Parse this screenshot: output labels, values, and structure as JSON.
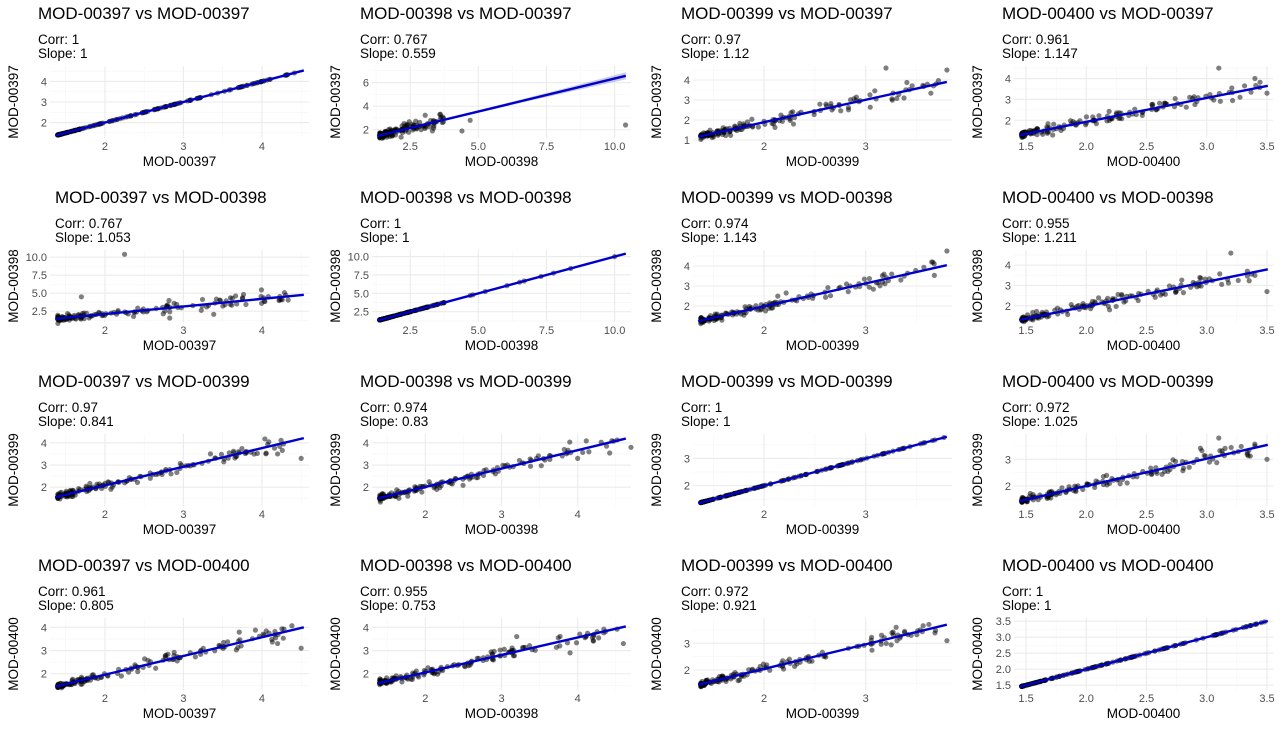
{
  "chart_data": [
    {
      "type": "scatter",
      "title": "MOD-00397 vs MOD-00397",
      "corr": "Corr: 1",
      "slope": "Slope: 1",
      "xlabel": "MOD-00397",
      "ylabel": "MOD-00397",
      "xlim": [
        1.3,
        4.6
      ],
      "ylim": [
        1.25,
        4.75
      ],
      "xticks": [
        "2",
        "3",
        "4"
      ],
      "yticks": [
        "2",
        "3",
        "4"
      ],
      "slope_value": 1,
      "intercept": 0,
      "pattern": "identity",
      "ci": false
    },
    {
      "type": "scatter",
      "title": "MOD-00398 vs MOD-00397",
      "corr": "Corr: 0.767",
      "slope": "Slope: 0.559",
      "xlabel": "MOD-00398",
      "ylabel": "MOD-00397",
      "xlim": [
        1.1,
        10.6
      ],
      "ylim": [
        1.3,
        7.4
      ],
      "xticks": [
        "2.5",
        "5.0",
        "7.5",
        "10.0"
      ],
      "yticks": [
        "2",
        "4",
        "6"
      ],
      "slope_value": 0.559,
      "intercept": 0.75,
      "pattern": "noisy",
      "ci": true,
      "outliers": [
        [
          10.4,
          2.4
        ],
        [
          4.7,
          2.8
        ],
        [
          4.4,
          1.9
        ]
      ]
    },
    {
      "type": "scatter",
      "title": "MOD-00399 vs MOD-00397",
      "corr": "Corr: 0.97",
      "slope": "Slope: 1.12",
      "xlabel": "MOD-00399",
      "ylabel": "MOD-00397",
      "xlim": [
        1.3,
        3.85
      ],
      "ylim": [
        1.1,
        4.7
      ],
      "xticks": [
        "2",
        "3"
      ],
      "yticks": [
        "1",
        "2",
        "3",
        "4"
      ],
      "slope_value": 1.12,
      "intercept": -0.35,
      "pattern": "noisy",
      "ci": false,
      "outliers": [
        [
          3.2,
          4.6
        ],
        [
          3.8,
          4.5
        ]
      ]
    },
    {
      "type": "scatter",
      "title": "MOD-00400 vs MOD-00397",
      "corr": "Corr: 0.961",
      "slope": "Slope: 1.147",
      "xlabel": "MOD-00400",
      "ylabel": "MOD-00397",
      "xlim": [
        1.4,
        3.55
      ],
      "ylim": [
        1.15,
        4.6
      ],
      "xticks": [
        "1.5",
        "2.0",
        "2.5",
        "3.0",
        "3.5"
      ],
      "yticks": [
        "2",
        "3",
        "4"
      ],
      "slope_value": 1.147,
      "intercept": -0.37,
      "pattern": "noisy",
      "ci": false,
      "outliers": [
        [
          3.1,
          4.5
        ],
        [
          3.4,
          4.0
        ],
        [
          3.5,
          3.3
        ]
      ]
    },
    {
      "type": "scatter",
      "title": "MOD-00397 vs MOD-00398",
      "corr": "Corr: 0.767",
      "slope": "Slope: 1.053",
      "xlabel": "MOD-00397",
      "ylabel": "MOD-00398",
      "xlim": [
        1.3,
        4.6
      ],
      "ylim": [
        1.0,
        11.0
      ],
      "xticks": [
        "2",
        "3",
        "4"
      ],
      "yticks": [
        "2.5",
        "5.0",
        "7.5",
        "10.0"
      ],
      "slope_value": 1.053,
      "intercept": 0.0,
      "pattern": "noisy",
      "ci": false,
      "outliers": [
        [
          2.25,
          10.4
        ],
        [
          1.7,
          4.5
        ]
      ]
    },
    {
      "type": "scatter",
      "title": "MOD-00398 vs MOD-00398",
      "corr": "Corr: 1",
      "slope": "Slope: 1",
      "xlabel": "MOD-00398",
      "ylabel": "MOD-00398",
      "xlim": [
        1.1,
        10.6
      ],
      "ylim": [
        1.1,
        10.9
      ],
      "xticks": [
        "2.5",
        "5.0",
        "7.5",
        "10.0"
      ],
      "yticks": [
        "2.5",
        "5.0",
        "7.5",
        "10.0"
      ],
      "slope_value": 1,
      "intercept": 0,
      "pattern": "identity",
      "ci": false
    },
    {
      "type": "scatter",
      "title": "MOD-00399 vs MOD-00398",
      "corr": "Corr: 0.974",
      "slope": "Slope: 1.143",
      "xlabel": "MOD-00399",
      "ylabel": "MOD-00398",
      "xlim": [
        1.3,
        3.85
      ],
      "ylim": [
        1.2,
        4.8
      ],
      "xticks": [
        "2",
        "3"
      ],
      "yticks": [
        "2",
        "3",
        "4"
      ],
      "slope_value": 1.143,
      "intercept": -0.3,
      "pattern": "noisy",
      "ci": false,
      "outliers": [
        [
          3.8,
          4.75
        ],
        [
          3.65,
          4.2
        ]
      ]
    },
    {
      "type": "scatter",
      "title": "MOD-00400 vs MOD-00398",
      "corr": "Corr: 0.955",
      "slope": "Slope: 1.211",
      "xlabel": "MOD-00400",
      "ylabel": "MOD-00398",
      "xlim": [
        1.4,
        3.55
      ],
      "ylim": [
        1.2,
        4.75
      ],
      "xticks": [
        "1.5",
        "2.0",
        "2.5",
        "3.0",
        "3.5"
      ],
      "yticks": [
        "2",
        "3",
        "4"
      ],
      "slope_value": 1.211,
      "intercept": -0.45,
      "pattern": "noisy",
      "ci": false,
      "outliers": [
        [
          3.2,
          4.6
        ],
        [
          3.4,
          3.5
        ],
        [
          3.5,
          2.7
        ]
      ]
    },
    {
      "type": "scatter",
      "title": "MOD-00397 vs MOD-00399",
      "corr": "Corr: 0.97",
      "slope": "Slope: 0.841",
      "xlabel": "MOD-00397",
      "ylabel": "MOD-00399",
      "xlim": [
        1.3,
        4.6
      ],
      "ylim": [
        1.15,
        4.4
      ],
      "xticks": [
        "2",
        "3",
        "4"
      ],
      "yticks": [
        "2",
        "3",
        "4"
      ],
      "slope_value": 0.841,
      "intercept": 0.4,
      "pattern": "noisy",
      "ci": false,
      "outliers": [
        [
          4.5,
          3.3
        ],
        [
          4.2,
          3.5
        ],
        [
          3.7,
          3.6
        ]
      ]
    },
    {
      "type": "scatter",
      "title": "MOD-00398 vs MOD-00399",
      "corr": "Corr: 0.974",
      "slope": "Slope: 0.83",
      "xlabel": "MOD-00398",
      "ylabel": "MOD-00399",
      "xlim": [
        1.3,
        4.7
      ],
      "ylim": [
        1.15,
        4.4
      ],
      "xticks": [
        "2",
        "3",
        "4"
      ],
      "yticks": [
        "2",
        "3",
        "4"
      ],
      "slope_value": 0.83,
      "intercept": 0.35,
      "pattern": "noisy",
      "ci": false,
      "outliers": [
        [
          4.7,
          3.8
        ],
        [
          4.0,
          3.3
        ]
      ]
    },
    {
      "type": "scatter",
      "title": "MOD-00399 vs MOD-00399",
      "corr": "Corr: 1",
      "slope": "Slope: 1",
      "xlabel": "MOD-00399",
      "ylabel": "MOD-00399",
      "xlim": [
        1.3,
        3.85
      ],
      "ylim": [
        1.25,
        3.9
      ],
      "xticks": [
        "2",
        "3"
      ],
      "yticks": [
        "2",
        "3"
      ],
      "slope_value": 1,
      "intercept": 0,
      "pattern": "identity",
      "ci": false
    },
    {
      "type": "scatter",
      "title": "MOD-00400 vs MOD-00399",
      "corr": "Corr: 0.972",
      "slope": "Slope: 1.025",
      "xlabel": "MOD-00400",
      "ylabel": "MOD-00399",
      "xlim": [
        1.4,
        3.55
      ],
      "ylim": [
        1.25,
        3.95
      ],
      "xticks": [
        "1.5",
        "2.0",
        "2.5",
        "3.0",
        "3.5"
      ],
      "yticks": [
        "2",
        "3"
      ],
      "slope_value": 1.025,
      "intercept": -0.05,
      "pattern": "noisy",
      "ci": false,
      "outliers": [
        [
          3.1,
          3.8
        ],
        [
          3.4,
          3.5
        ],
        [
          3.5,
          3.0
        ]
      ]
    },
    {
      "type": "scatter",
      "title": "MOD-00397 vs MOD-00400",
      "corr": "Corr: 0.961",
      "slope": "Slope: 0.805",
      "xlabel": "MOD-00397",
      "ylabel": "MOD-00400",
      "xlim": [
        1.3,
        4.6
      ],
      "ylim": [
        1.3,
        4.4
      ],
      "xticks": [
        "2",
        "3",
        "4"
      ],
      "yticks": [
        "2",
        "3",
        "4"
      ],
      "slope_value": 0.805,
      "intercept": 0.35,
      "pattern": "noisy",
      "ci": false,
      "outliers": [
        [
          4.5,
          3.1
        ],
        [
          4.2,
          3.3
        ],
        [
          3.7,
          3.4
        ]
      ]
    },
    {
      "type": "scatter",
      "title": "MOD-00398 vs MOD-00400",
      "corr": "Corr: 0.955",
      "slope": "Slope: 0.753",
      "xlabel": "MOD-00398",
      "ylabel": "MOD-00400",
      "xlim": [
        1.3,
        4.7
      ],
      "ylim": [
        1.3,
        4.4
      ],
      "xticks": [
        "2",
        "3",
        "4"
      ],
      "yticks": [
        "2",
        "3",
        "4"
      ],
      "slope_value": 0.753,
      "intercept": 0.55,
      "pattern": "noisy",
      "ci": false,
      "outliers": [
        [
          4.6,
          3.3
        ],
        [
          3.9,
          2.9
        ],
        [
          3.2,
          3.6
        ]
      ]
    },
    {
      "type": "scatter",
      "title": "MOD-00399 vs MOD-00400",
      "corr": "Corr: 0.972",
      "slope": "Slope: 0.921",
      "xlabel": "MOD-00399",
      "ylabel": "MOD-00400",
      "xlim": [
        1.3,
        3.85
      ],
      "ylim": [
        1.25,
        3.95
      ],
      "xticks": [
        "2",
        "3"
      ],
      "yticks": [
        "2",
        "3"
      ],
      "slope_value": 0.921,
      "intercept": 0.2,
      "pattern": "noisy",
      "ci": false,
      "outliers": [
        [
          3.8,
          3.1
        ],
        [
          3.3,
          3.6
        ]
      ]
    },
    {
      "type": "scatter",
      "title": "MOD-00400 vs MOD-00400",
      "corr": "Corr: 1",
      "slope": "Slope: 1",
      "xlabel": "MOD-00400",
      "ylabel": "MOD-00400",
      "xlim": [
        1.4,
        3.55
      ],
      "ylim": [
        1.35,
        3.6
      ],
      "xticks": [
        "1.5",
        "2.0",
        "2.5",
        "3.0",
        "3.5"
      ],
      "yticks": [
        "1.5",
        "2.0",
        "2.5",
        "3.0",
        "3.5"
      ],
      "slope_value": 1,
      "intercept": 0,
      "pattern": "identity",
      "ci": false
    }
  ],
  "colors": {
    "point": "#000000",
    "fit_line": "#0000cc",
    "ci_band": "#9999cc",
    "grid_major": "#ebebeb",
    "grid_minor": "#f5f5f5"
  }
}
